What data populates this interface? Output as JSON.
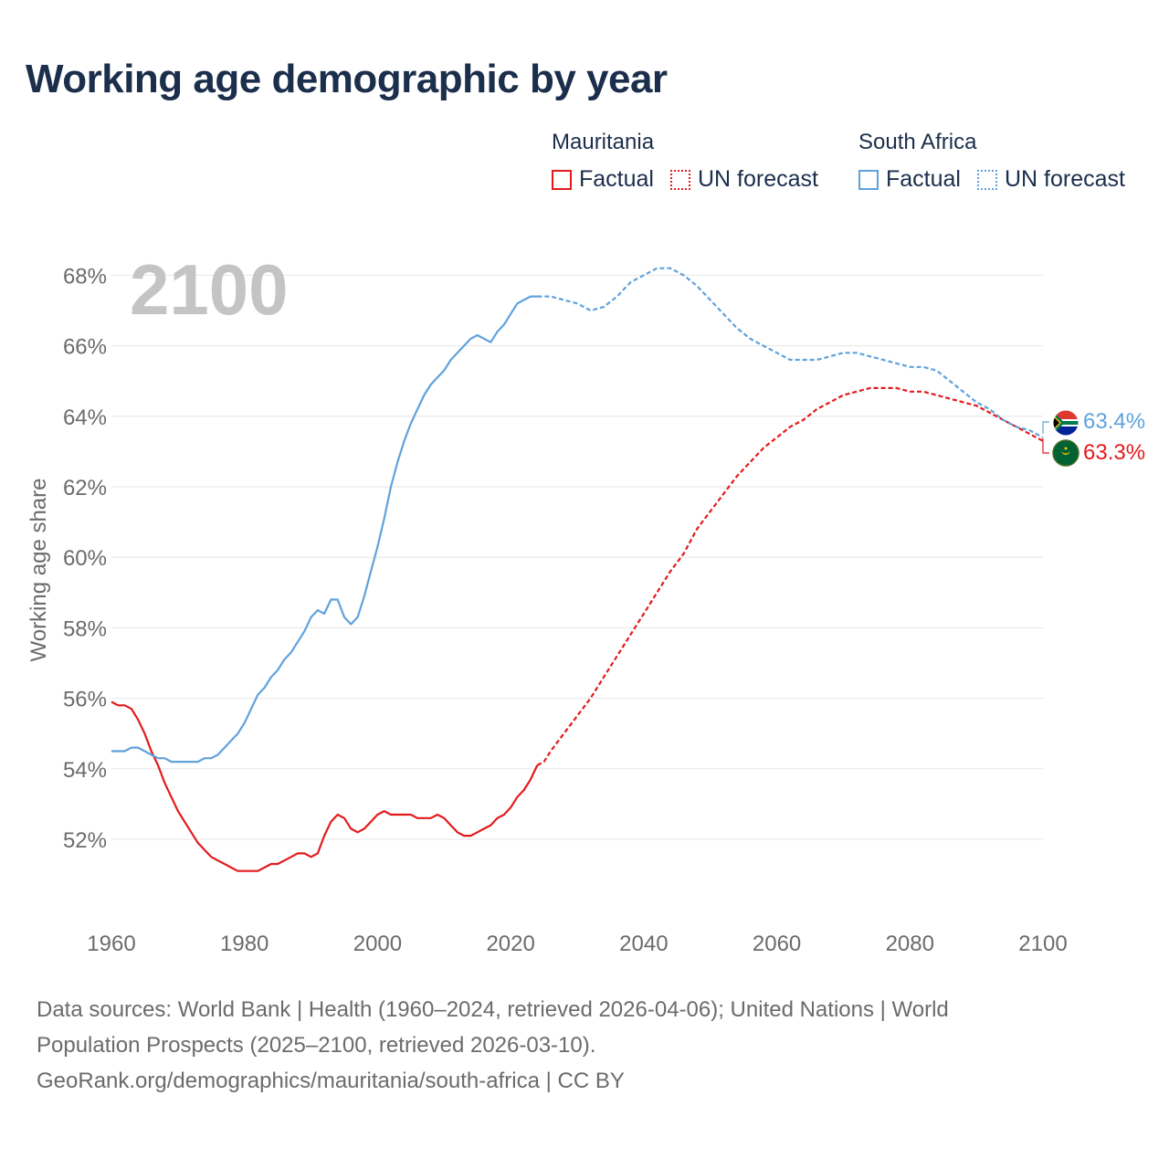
{
  "title": "Working age demographic by year",
  "legend": {
    "groups": [
      {
        "name": "Mauritania",
        "color": "#e31a1c",
        "factual_label": "Factual",
        "forecast_label": "UN forecast"
      },
      {
        "name": "South Africa",
        "color": "#5fa2dd",
        "factual_label": "Factual",
        "forecast_label": "UN forecast"
      }
    ]
  },
  "year_display": "2100",
  "end_labels": {
    "south_africa": "63.4%",
    "mauritania": "63.3%"
  },
  "sources": {
    "line1": "Data sources: World Bank | Health (1960–2024, retrieved 2026-04-06); United Nations | World",
    "line2": "Population Prospects (2025–2100, retrieved 2026-03-10).",
    "line3": "GeoRank.org/demographics/mauritania/south-africa | CC BY"
  },
  "chart_data": {
    "type": "line",
    "title": "Working age demographic by year",
    "xlabel": "",
    "ylabel": "Working age share",
    "xlim": [
      1960,
      2100
    ],
    "ylim": [
      50,
      69
    ],
    "x_ticks": [
      1960,
      1980,
      2000,
      2020,
      2040,
      2060,
      2080,
      2100
    ],
    "x_tick_labels": [
      "1960",
      "1980",
      "2000",
      "2020",
      "2040",
      "2060",
      "2080",
      "2100"
    ],
    "y_ticks": [
      52,
      54,
      56,
      58,
      60,
      62,
      64,
      66,
      68
    ],
    "y_tick_labels": [
      "52%",
      "54%",
      "56%",
      "58%",
      "60%",
      "62%",
      "64%",
      "66%",
      "68%"
    ],
    "factual_last_year": 2024,
    "series": [
      {
        "name": "Mauritania",
        "color": "#e31a1c",
        "points": [
          [
            1960,
            55.9
          ],
          [
            1961,
            55.8
          ],
          [
            1962,
            55.8
          ],
          [
            1963,
            55.7
          ],
          [
            1964,
            55.4
          ],
          [
            1965,
            55.0
          ],
          [
            1966,
            54.5
          ],
          [
            1967,
            54.1
          ],
          [
            1968,
            53.6
          ],
          [
            1969,
            53.2
          ],
          [
            1970,
            52.8
          ],
          [
            1971,
            52.5
          ],
          [
            1972,
            52.2
          ],
          [
            1973,
            51.9
          ],
          [
            1974,
            51.7
          ],
          [
            1975,
            51.5
          ],
          [
            1976,
            51.4
          ],
          [
            1977,
            51.3
          ],
          [
            1978,
            51.2
          ],
          [
            1979,
            51.1
          ],
          [
            1980,
            51.1
          ],
          [
            1981,
            51.1
          ],
          [
            1982,
            51.1
          ],
          [
            1983,
            51.2
          ],
          [
            1984,
            51.3
          ],
          [
            1985,
            51.3
          ],
          [
            1986,
            51.4
          ],
          [
            1987,
            51.5
          ],
          [
            1988,
            51.6
          ],
          [
            1989,
            51.6
          ],
          [
            1990,
            51.5
          ],
          [
            1991,
            51.6
          ],
          [
            1992,
            52.1
          ],
          [
            1993,
            52.5
          ],
          [
            1994,
            52.7
          ],
          [
            1995,
            52.6
          ],
          [
            1996,
            52.3
          ],
          [
            1997,
            52.2
          ],
          [
            1998,
            52.3
          ],
          [
            1999,
            52.5
          ],
          [
            2000,
            52.7
          ],
          [
            2001,
            52.8
          ],
          [
            2002,
            52.7
          ],
          [
            2003,
            52.7
          ],
          [
            2004,
            52.7
          ],
          [
            2005,
            52.7
          ],
          [
            2006,
            52.6
          ],
          [
            2007,
            52.6
          ],
          [
            2008,
            52.6
          ],
          [
            2009,
            52.7
          ],
          [
            2010,
            52.6
          ],
          [
            2011,
            52.4
          ],
          [
            2012,
            52.2
          ],
          [
            2013,
            52.1
          ],
          [
            2014,
            52.1
          ],
          [
            2015,
            52.2
          ],
          [
            2016,
            52.3
          ],
          [
            2017,
            52.4
          ],
          [
            2018,
            52.6
          ],
          [
            2019,
            52.7
          ],
          [
            2020,
            52.9
          ],
          [
            2021,
            53.2
          ],
          [
            2022,
            53.4
          ],
          [
            2023,
            53.7
          ],
          [
            2024,
            54.1
          ],
          [
            2025,
            54.2
          ],
          [
            2026,
            54.5
          ],
          [
            2028,
            55.0
          ],
          [
            2030,
            55.5
          ],
          [
            2032,
            56.0
          ],
          [
            2034,
            56.6
          ],
          [
            2036,
            57.2
          ],
          [
            2038,
            57.8
          ],
          [
            2040,
            58.4
          ],
          [
            2042,
            59.0
          ],
          [
            2044,
            59.6
          ],
          [
            2046,
            60.1
          ],
          [
            2048,
            60.8
          ],
          [
            2050,
            61.3
          ],
          [
            2052,
            61.8
          ],
          [
            2054,
            62.3
          ],
          [
            2056,
            62.7
          ],
          [
            2058,
            63.1
          ],
          [
            2060,
            63.4
          ],
          [
            2062,
            63.7
          ],
          [
            2064,
            63.9
          ],
          [
            2066,
            64.2
          ],
          [
            2068,
            64.4
          ],
          [
            2070,
            64.6
          ],
          [
            2072,
            64.7
          ],
          [
            2074,
            64.8
          ],
          [
            2076,
            64.8
          ],
          [
            2078,
            64.8
          ],
          [
            2080,
            64.7
          ],
          [
            2082,
            64.7
          ],
          [
            2084,
            64.6
          ],
          [
            2086,
            64.5
          ],
          [
            2088,
            64.4
          ],
          [
            2090,
            64.3
          ],
          [
            2092,
            64.1
          ],
          [
            2094,
            63.9
          ],
          [
            2096,
            63.7
          ],
          [
            2098,
            63.5
          ],
          [
            2100,
            63.3
          ]
        ]
      },
      {
        "name": "South Africa",
        "color": "#5fa2dd",
        "points": [
          [
            1960,
            54.5
          ],
          [
            1961,
            54.5
          ],
          [
            1962,
            54.5
          ],
          [
            1963,
            54.6
          ],
          [
            1964,
            54.6
          ],
          [
            1965,
            54.5
          ],
          [
            1966,
            54.4
          ],
          [
            1967,
            54.3
          ],
          [
            1968,
            54.3
          ],
          [
            1969,
            54.2
          ],
          [
            1970,
            54.2
          ],
          [
            1971,
            54.2
          ],
          [
            1972,
            54.2
          ],
          [
            1973,
            54.2
          ],
          [
            1974,
            54.3
          ],
          [
            1975,
            54.3
          ],
          [
            1976,
            54.4
          ],
          [
            1977,
            54.6
          ],
          [
            1978,
            54.8
          ],
          [
            1979,
            55.0
          ],
          [
            1980,
            55.3
          ],
          [
            1981,
            55.7
          ],
          [
            1982,
            56.1
          ],
          [
            1983,
            56.3
          ],
          [
            1984,
            56.6
          ],
          [
            1985,
            56.8
          ],
          [
            1986,
            57.1
          ],
          [
            1987,
            57.3
          ],
          [
            1988,
            57.6
          ],
          [
            1989,
            57.9
          ],
          [
            1990,
            58.3
          ],
          [
            1991,
            58.5
          ],
          [
            1992,
            58.4
          ],
          [
            1993,
            58.8
          ],
          [
            1994,
            58.8
          ],
          [
            1995,
            58.3
          ],
          [
            1996,
            58.1
          ],
          [
            1997,
            58.3
          ],
          [
            1998,
            58.9
          ],
          [
            1999,
            59.6
          ],
          [
            2000,
            60.3
          ],
          [
            2001,
            61.1
          ],
          [
            2002,
            62.0
          ],
          [
            2003,
            62.7
          ],
          [
            2004,
            63.3
          ],
          [
            2005,
            63.8
          ],
          [
            2006,
            64.2
          ],
          [
            2007,
            64.6
          ],
          [
            2008,
            64.9
          ],
          [
            2009,
            65.1
          ],
          [
            2010,
            65.3
          ],
          [
            2011,
            65.6
          ],
          [
            2012,
            65.8
          ],
          [
            2013,
            66.0
          ],
          [
            2014,
            66.2
          ],
          [
            2015,
            66.3
          ],
          [
            2016,
            66.2
          ],
          [
            2017,
            66.1
          ],
          [
            2018,
            66.4
          ],
          [
            2019,
            66.6
          ],
          [
            2020,
            66.9
          ],
          [
            2021,
            67.2
          ],
          [
            2022,
            67.3
          ],
          [
            2023,
            67.4
          ],
          [
            2024,
            67.4
          ],
          [
            2025,
            67.4
          ],
          [
            2026,
            67.4
          ],
          [
            2028,
            67.3
          ],
          [
            2030,
            67.2
          ],
          [
            2032,
            67.0
          ],
          [
            2034,
            67.1
          ],
          [
            2036,
            67.4
          ],
          [
            2038,
            67.8
          ],
          [
            2040,
            68.0
          ],
          [
            2042,
            68.2
          ],
          [
            2044,
            68.2
          ],
          [
            2046,
            68.0
          ],
          [
            2048,
            67.7
          ],
          [
            2050,
            67.3
          ],
          [
            2052,
            66.9
          ],
          [
            2054,
            66.5
          ],
          [
            2056,
            66.2
          ],
          [
            2058,
            66.0
          ],
          [
            2060,
            65.8
          ],
          [
            2062,
            65.6
          ],
          [
            2064,
            65.6
          ],
          [
            2066,
            65.6
          ],
          [
            2068,
            65.7
          ],
          [
            2070,
            65.8
          ],
          [
            2072,
            65.8
          ],
          [
            2074,
            65.7
          ],
          [
            2076,
            65.6
          ],
          [
            2078,
            65.5
          ],
          [
            2080,
            65.4
          ],
          [
            2082,
            65.4
          ],
          [
            2084,
            65.3
          ],
          [
            2086,
            65.0
          ],
          [
            2088,
            64.7
          ],
          [
            2090,
            64.4
          ],
          [
            2092,
            64.2
          ],
          [
            2094,
            63.9
          ],
          [
            2096,
            63.7
          ],
          [
            2098,
            63.6
          ],
          [
            2100,
            63.4
          ]
        ]
      }
    ]
  }
}
